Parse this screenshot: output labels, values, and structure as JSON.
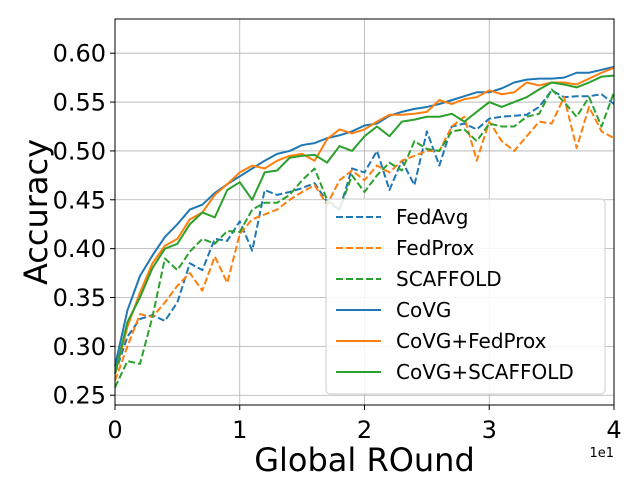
{
  "chart_data": {
    "type": "line",
    "xlabel": "Global ROund",
    "ylabel": "Accuracy",
    "x_offset_label": "1e1",
    "xlim": [
      0,
      4
    ],
    "ylim": [
      0.24,
      0.635
    ],
    "x_ticks": [
      0,
      1,
      2,
      3,
      4
    ],
    "x_tick_labels": [
      "0",
      "1",
      "2",
      "3",
      "4"
    ],
    "y_ticks": [
      0.25,
      0.3,
      0.35,
      0.4,
      0.45,
      0.5,
      0.55,
      0.6
    ],
    "y_tick_labels": [
      "0.25",
      "0.30",
      "0.35",
      "0.40",
      "0.45",
      "0.50",
      "0.55",
      "0.60"
    ],
    "grid": true,
    "legend_position": "lower-right",
    "x": [
      0.0,
      0.1,
      0.2,
      0.3,
      0.4,
      0.5,
      0.6,
      0.7,
      0.8,
      0.9,
      1.0,
      1.1,
      1.2,
      1.3,
      1.4,
      1.5,
      1.6,
      1.7,
      1.8,
      1.9,
      2.0,
      2.1,
      2.2,
      2.3,
      2.4,
      2.5,
      2.6,
      2.7,
      2.8,
      2.9,
      3.0,
      3.1,
      3.2,
      3.3,
      3.4,
      3.5,
      3.6,
      3.7,
      3.8,
      3.9,
      4.0
    ],
    "series": [
      {
        "name": "FedAvg",
        "color": "#1f77b4",
        "dash": true,
        "values": [
          0.272,
          0.31,
          0.328,
          0.332,
          0.326,
          0.345,
          0.385,
          0.378,
          0.41,
          0.408,
          0.428,
          0.398,
          0.46,
          0.455,
          0.458,
          0.462,
          0.467,
          0.448,
          0.44,
          0.482,
          0.478,
          0.5,
          0.46,
          0.49,
          0.465,
          0.52,
          0.485,
          0.525,
          0.528,
          0.522,
          0.533,
          0.535,
          0.536,
          0.537,
          0.545,
          0.562,
          0.555,
          0.556,
          0.556,
          0.558,
          0.548
        ]
      },
      {
        "name": "FedProx",
        "color": "#ff7f0e",
        "dash": true,
        "values": [
          0.265,
          0.3,
          0.333,
          0.33,
          0.345,
          0.362,
          0.375,
          0.357,
          0.392,
          0.365,
          0.415,
          0.43,
          0.435,
          0.44,
          0.45,
          0.458,
          0.465,
          0.445,
          0.47,
          0.48,
          0.47,
          0.485,
          0.478,
          0.49,
          0.495,
          0.5,
          0.5,
          0.525,
          0.535,
          0.49,
          0.53,
          0.51,
          0.5,
          0.515,
          0.53,
          0.528,
          0.555,
          0.503,
          0.545,
          0.52,
          0.513
        ]
      },
      {
        "name": "SCAFFOLD",
        "color": "#2ca02c",
        "dash": true,
        "values": [
          0.258,
          0.285,
          0.282,
          0.33,
          0.39,
          0.378,
          0.397,
          0.41,
          0.405,
          0.418,
          0.417,
          0.44,
          0.447,
          0.447,
          0.455,
          0.47,
          0.482,
          0.45,
          0.44,
          0.475,
          0.458,
          0.475,
          0.488,
          0.48,
          0.51,
          0.502,
          0.5,
          0.52,
          0.522,
          0.51,
          0.528,
          0.525,
          0.525,
          0.535,
          0.538,
          0.563,
          0.55,
          0.535,
          0.555,
          0.525,
          0.56
        ]
      },
      {
        "name": "CoVG",
        "color": "#1f77b4",
        "dash": false,
        "values": [
          0.28,
          0.337,
          0.372,
          0.393,
          0.412,
          0.425,
          0.44,
          0.445,
          0.457,
          0.466,
          0.474,
          0.482,
          0.49,
          0.497,
          0.5,
          0.506,
          0.508,
          0.513,
          0.516,
          0.52,
          0.526,
          0.528,
          0.536,
          0.54,
          0.543,
          0.545,
          0.548,
          0.552,
          0.556,
          0.56,
          0.56,
          0.564,
          0.57,
          0.573,
          0.574,
          0.574,
          0.575,
          0.58,
          0.58,
          0.583,
          0.586
        ]
      },
      {
        "name": "CoVG+FedProx",
        "color": "#ff7f0e",
        "dash": false,
        "values": [
          0.272,
          0.32,
          0.355,
          0.385,
          0.403,
          0.41,
          0.43,
          0.437,
          0.455,
          0.466,
          0.478,
          0.485,
          0.482,
          0.49,
          0.495,
          0.497,
          0.49,
          0.512,
          0.522,
          0.518,
          0.522,
          0.53,
          0.537,
          0.537,
          0.538,
          0.54,
          0.552,
          0.548,
          0.553,
          0.555,
          0.562,
          0.558,
          0.56,
          0.57,
          0.567,
          0.57,
          0.57,
          0.568,
          0.574,
          0.58,
          0.585
        ]
      },
      {
        "name": "CoVG+SCAFFOLD",
        "color": "#2ca02c",
        "dash": false,
        "values": [
          0.272,
          0.325,
          0.35,
          0.38,
          0.4,
          0.405,
          0.425,
          0.437,
          0.432,
          0.46,
          0.468,
          0.45,
          0.478,
          0.48,
          0.493,
          0.495,
          0.496,
          0.488,
          0.505,
          0.5,
          0.515,
          0.525,
          0.515,
          0.53,
          0.532,
          0.535,
          0.535,
          0.538,
          0.53,
          0.54,
          0.55,
          0.545,
          0.55,
          0.555,
          0.563,
          0.57,
          0.568,
          0.565,
          0.57,
          0.576,
          0.577
        ]
      }
    ]
  }
}
